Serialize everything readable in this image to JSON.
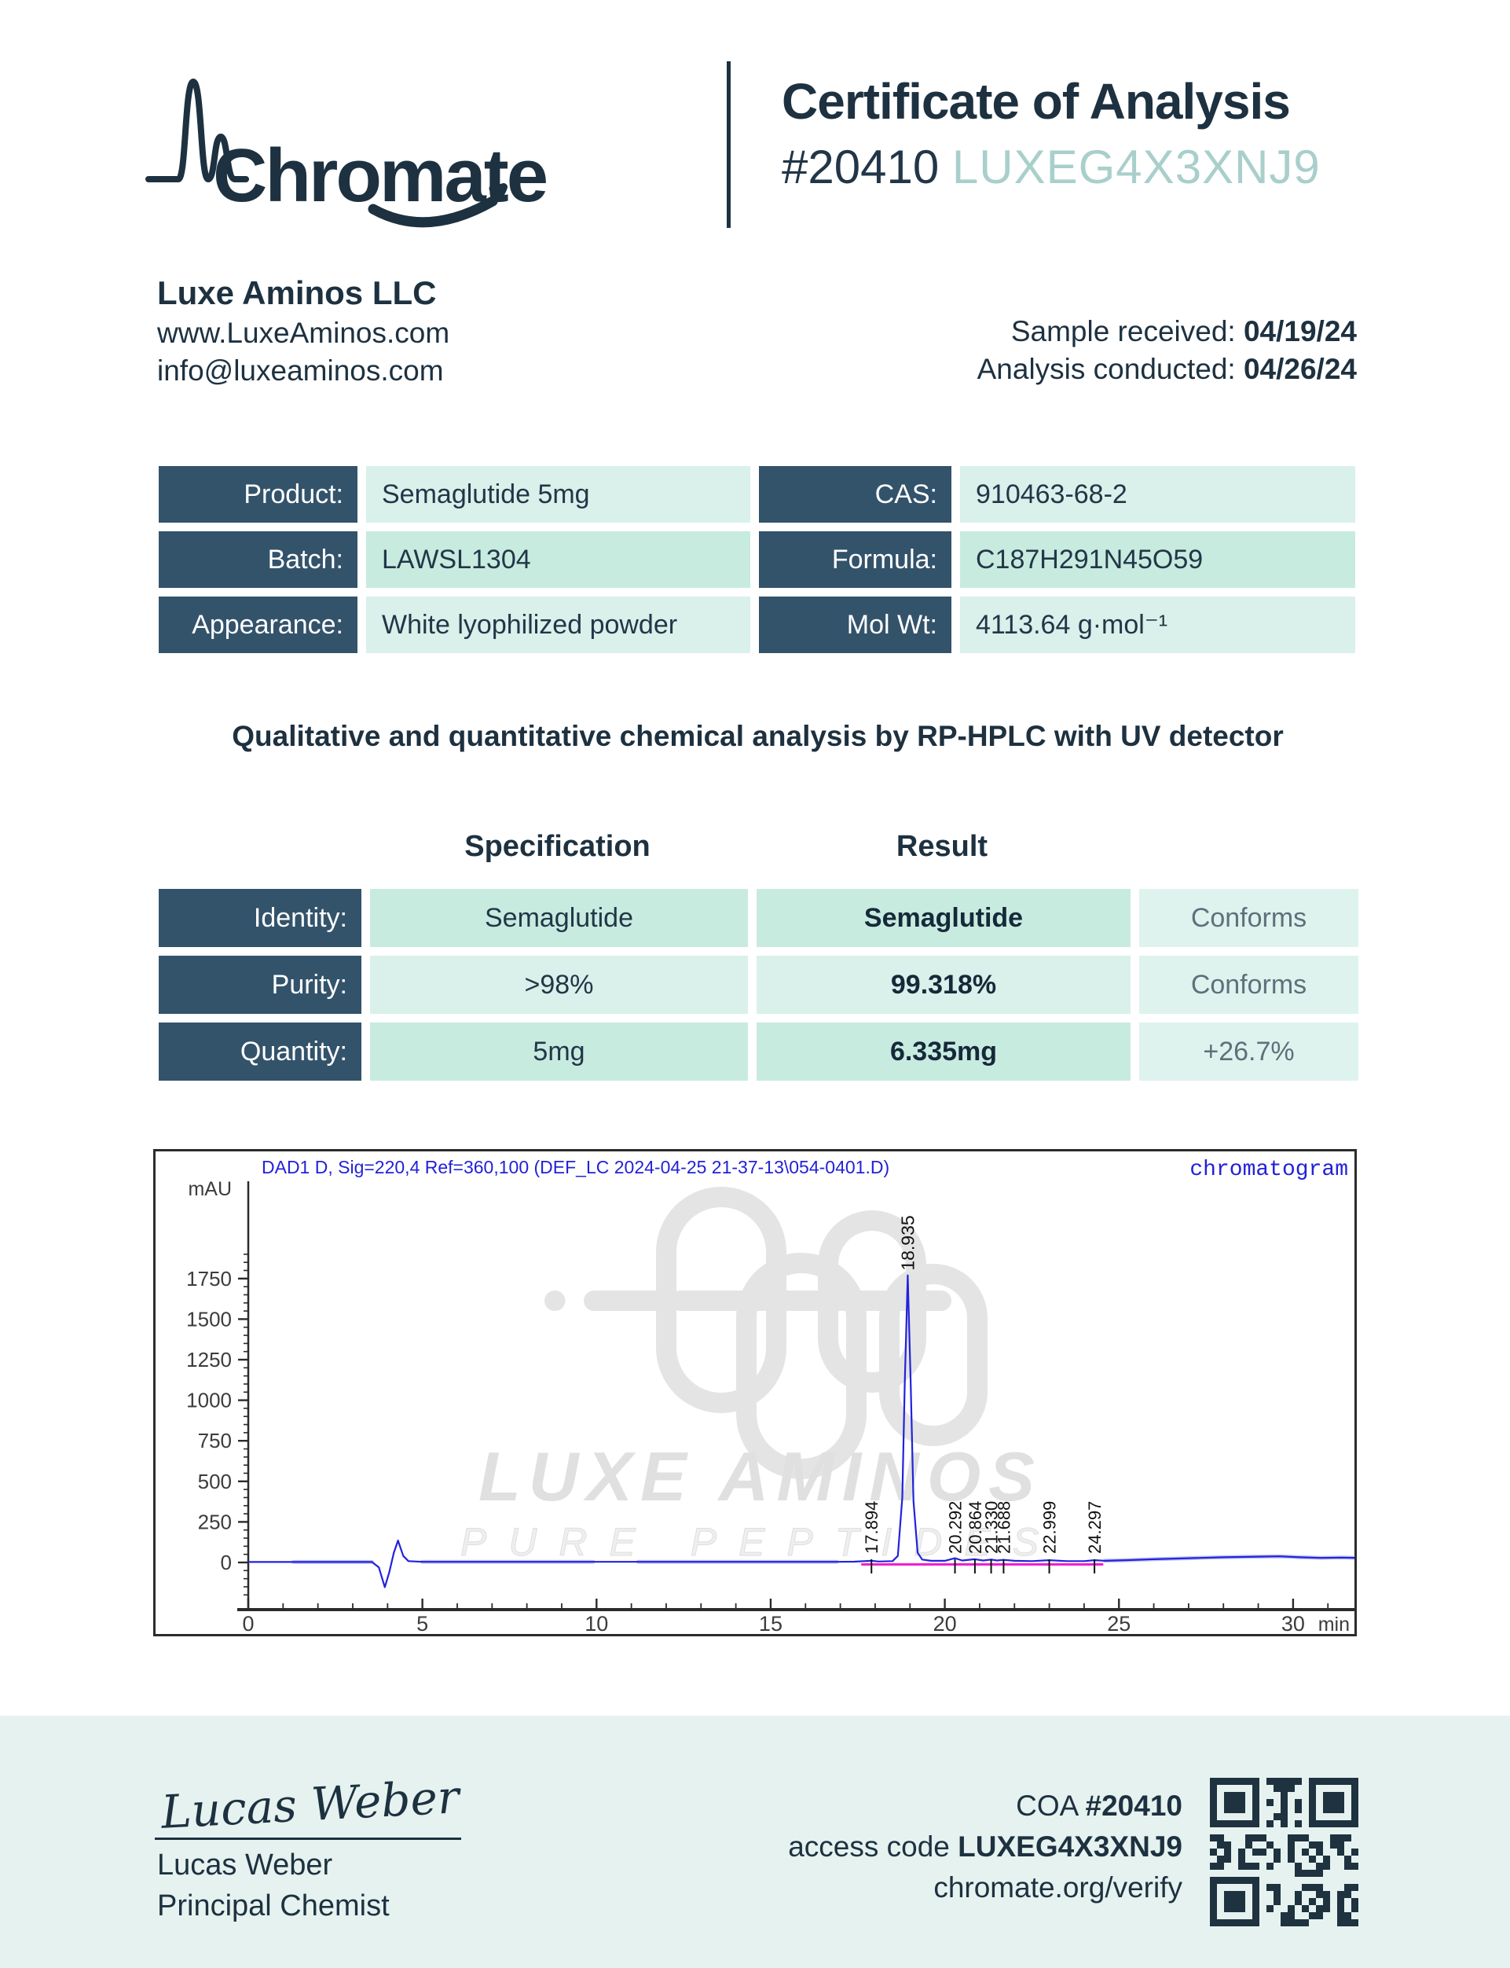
{
  "header": {
    "brand": "Chromate",
    "title": "Certificate of Analysis",
    "coa_number": "#20410",
    "access_code": "LUXEG4X3XNJ9"
  },
  "company": {
    "name": "Luxe Aminos LLC",
    "website": "www.LuxeAminos.com",
    "email": "info@luxeaminos.com",
    "sample_received_label": "Sample received: ",
    "sample_received_value": "04/19/24",
    "analysis_conducted_label": "Analysis conducted: ",
    "analysis_conducted_value": "04/26/24"
  },
  "product_table": {
    "rows": [
      {
        "label1": "Product:",
        "value1": "Semaglutide 5mg",
        "label2": "CAS:",
        "value2": "910463-68-2"
      },
      {
        "label1": "Batch:",
        "value1": "LAWSL1304",
        "label2": "Formula:",
        "value2": "C187H291N45O59"
      },
      {
        "label1": "Appearance:",
        "value1": "White lyophilized powder",
        "label2": "Mol Wt:",
        "value2": "4113.64 g·mol⁻¹"
      }
    ]
  },
  "method_line": "Qualitative and quantitative chemical analysis by RP-HPLC with UV detector",
  "spec_table": {
    "col_header_spec": "Specification",
    "col_header_result": "Result",
    "rows": [
      {
        "label": "Identity:",
        "spec": "Semaglutide",
        "result": "Semaglutide",
        "status": "Conforms"
      },
      {
        "label": "Purity:",
        "spec": ">98%",
        "result": "99.318%",
        "status": "Conforms"
      },
      {
        "label": "Quantity:",
        "spec": "5mg",
        "result": "6.335mg",
        "status": "+26.7%"
      }
    ]
  },
  "chart_data": {
    "type": "line",
    "title": "DAD1 D, Sig=220,4 Ref=360,100 (DEF_LC 2024-04-25 21-37-13\\054-0401.D)",
    "corner_label": "chromatogram",
    "ylabel": "mAU",
    "xlabel": "min",
    "x_ticks": [
      0,
      5,
      10,
      15,
      20,
      25,
      30
    ],
    "y_ticks": [
      0,
      250,
      500,
      750,
      1000,
      1250,
      1500,
      1750
    ],
    "xlim": [
      0,
      31.9
    ],
    "ylim": [
      -290,
      2030
    ],
    "grid": false,
    "trace_color": "#2222dd",
    "integration_color": "#ef1ed1",
    "main_peak": {
      "rt": 18.935,
      "height_mAU": 1770
    },
    "labeled_peaks": [
      {
        "label": "17.894",
        "rt": 17.894
      },
      {
        "label": "18.935",
        "rt": 18.935,
        "main": true
      },
      {
        "label": "20.292",
        "rt": 20.292
      },
      {
        "label": "20.864",
        "rt": 20.864
      },
      {
        "label": "21.330",
        "rt": 21.33
      },
      {
        "label": "21.688",
        "rt": 21.688
      },
      {
        "label": "22.999",
        "rt": 22.999
      },
      {
        "label": "24.297",
        "rt": 24.297
      }
    ],
    "integration_baseline": {
      "from_min": 17.6,
      "to_min": 24.55
    },
    "baseline_disturbance": {
      "dip_min": 3.92,
      "dip_mAU": -152,
      "bump_min": 4.3,
      "bump_mAU": 135
    },
    "trace": [
      [
        0,
        3
      ],
      [
        1,
        3
      ],
      [
        1.3,
        3
      ],
      [
        2,
        3
      ],
      [
        3,
        3
      ],
      [
        3.55,
        3
      ],
      [
        3.75,
        -30
      ],
      [
        3.92,
        -152
      ],
      [
        4.05,
        -60
      ],
      [
        4.18,
        60
      ],
      [
        4.3,
        135
      ],
      [
        4.45,
        40
      ],
      [
        4.6,
        8
      ],
      [
        5,
        4
      ],
      [
        6,
        4
      ],
      [
        8,
        4
      ],
      [
        9.9,
        4
      ],
      [
        11.2,
        4
      ],
      [
        12,
        4
      ],
      [
        14,
        4
      ],
      [
        16,
        4
      ],
      [
        16.9,
        4
      ],
      [
        17.4,
        5
      ],
      [
        17.894,
        10
      ],
      [
        18.1,
        6
      ],
      [
        18.5,
        8
      ],
      [
        18.65,
        40
      ],
      [
        18.78,
        400
      ],
      [
        18.85,
        1100
      ],
      [
        18.935,
        1770
      ],
      [
        19.02,
        1100
      ],
      [
        19.1,
        380
      ],
      [
        19.22,
        60
      ],
      [
        19.35,
        18
      ],
      [
        19.6,
        10
      ],
      [
        20.0,
        10
      ],
      [
        20.292,
        26
      ],
      [
        20.5,
        12
      ],
      [
        20.864,
        20
      ],
      [
        21.1,
        12
      ],
      [
        21.33,
        18
      ],
      [
        21.5,
        12
      ],
      [
        21.688,
        16
      ],
      [
        22.0,
        10
      ],
      [
        22.5,
        8
      ],
      [
        22.999,
        14
      ],
      [
        23.5,
        8
      ],
      [
        24.0,
        8
      ],
      [
        24.297,
        14
      ],
      [
        24.6,
        10
      ],
      [
        25.2,
        14
      ],
      [
        26,
        20
      ],
      [
        27,
        26
      ],
      [
        28,
        32
      ],
      [
        29,
        36
      ],
      [
        29.6,
        38
      ],
      [
        30.2,
        32
      ],
      [
        30.8,
        28
      ],
      [
        31.4,
        30
      ],
      [
        31.9,
        28
      ]
    ],
    "shadow_segments": [
      [
        1.3,
        3.6
      ],
      [
        5.0,
        9.9
      ],
      [
        11.2,
        16.9
      ],
      [
        24.6,
        31.9
      ]
    ],
    "watermark": {
      "line1": "LUXE AMINOS",
      "line2": "PURE PEPTIDES"
    }
  },
  "footer": {
    "coa_label": "COA ",
    "coa_number": "#20410",
    "access_label": "access code ",
    "access_code": "LUXEG4X3XNJ9",
    "verify_url": "chromate.org/verify",
    "qr_icon": "qr-code"
  },
  "colors": {
    "navy": "#1d3140",
    "label_cell": "#33536b",
    "mint_light": "#d9f1ea",
    "mint_dark": "#c8ebdf",
    "accent_teal": "#a9cfcb",
    "footer_bg": "#e6f2ef",
    "chart_blue": "#2222dd",
    "chart_magenta": "#ef1ed1"
  }
}
